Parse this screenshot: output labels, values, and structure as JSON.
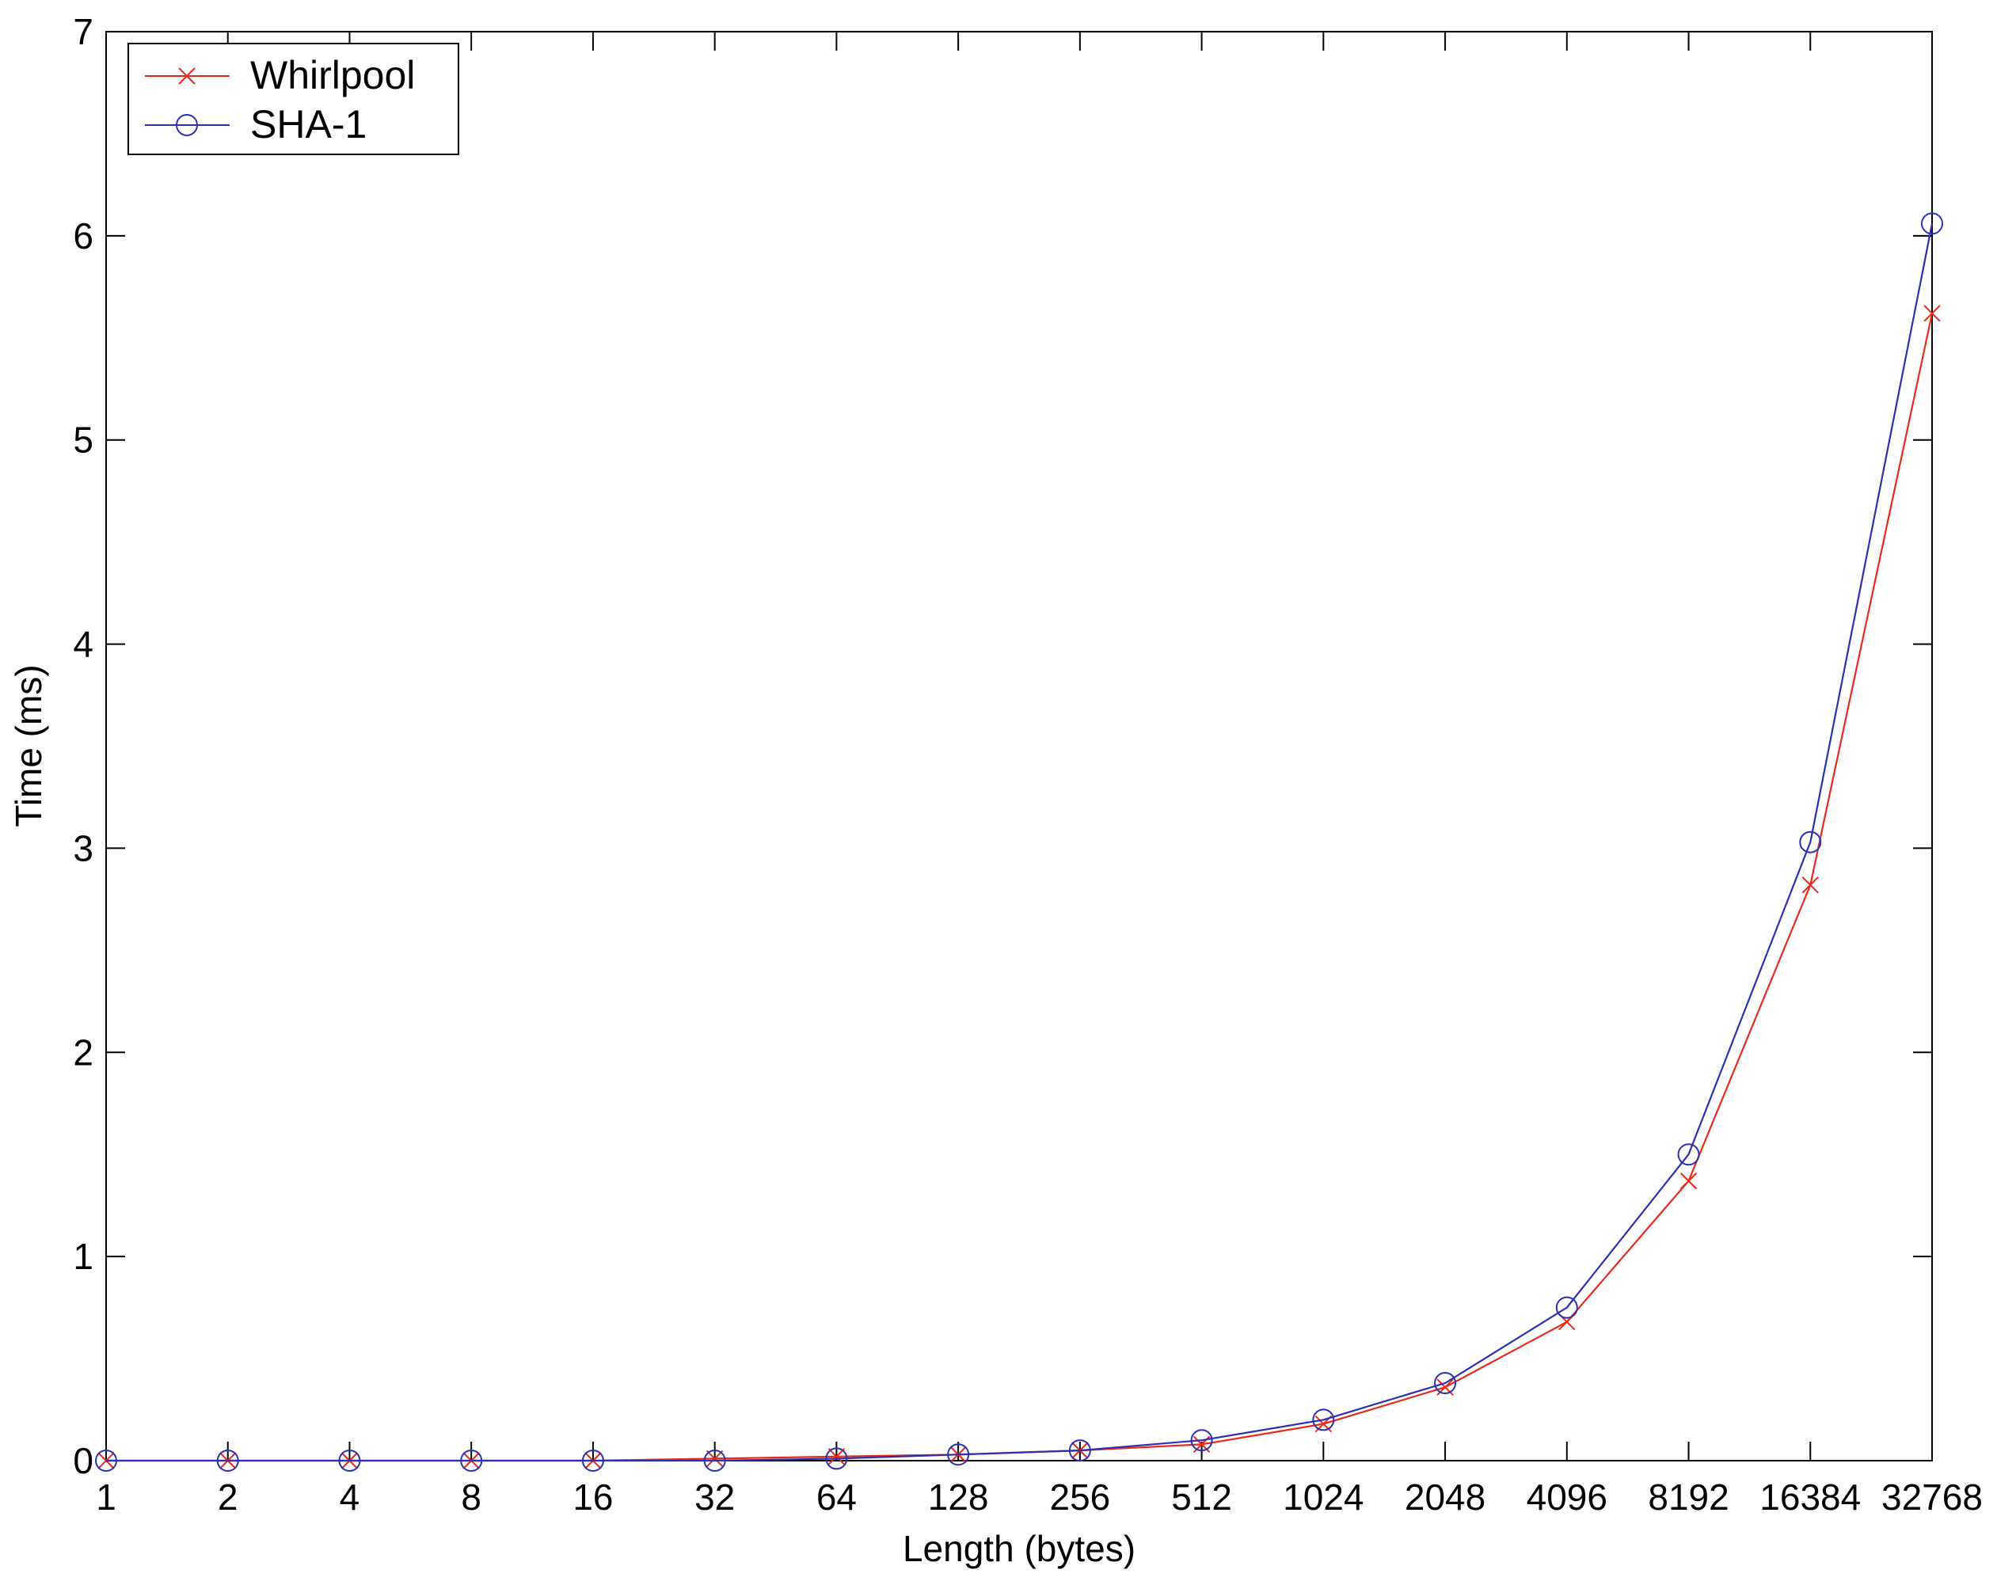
{
  "chart_data": {
    "type": "line",
    "title": "",
    "xlabel": "Length (bytes)",
    "ylabel": "Time (ms)",
    "categories": [
      "1",
      "2",
      "4",
      "8",
      "16",
      "32",
      "64",
      "128",
      "256",
      "512",
      "1024",
      "2048",
      "4096",
      "8192",
      "16384",
      "32768"
    ],
    "yticks": [
      "0",
      "1",
      "2",
      "3",
      "4",
      "5",
      "6",
      "7"
    ],
    "ylim": [
      0,
      7
    ],
    "grid": false,
    "legend_position": "top-left",
    "series": [
      {
        "name": "Whirlpool",
        "color": "#e8291c",
        "marker": "x",
        "values": [
          0.0,
          0.0,
          0.0,
          0.0,
          0.0,
          0.01,
          0.02,
          0.03,
          0.05,
          0.08,
          0.18,
          0.36,
          0.68,
          1.37,
          2.82,
          5.62
        ]
      },
      {
        "name": "SHA-1",
        "color": "#2b2fb0",
        "marker": "o",
        "values": [
          0.0,
          0.0,
          0.0,
          0.0,
          0.0,
          0.0,
          0.01,
          0.03,
          0.05,
          0.1,
          0.2,
          0.38,
          0.75,
          1.5,
          3.03,
          6.06
        ]
      }
    ]
  }
}
